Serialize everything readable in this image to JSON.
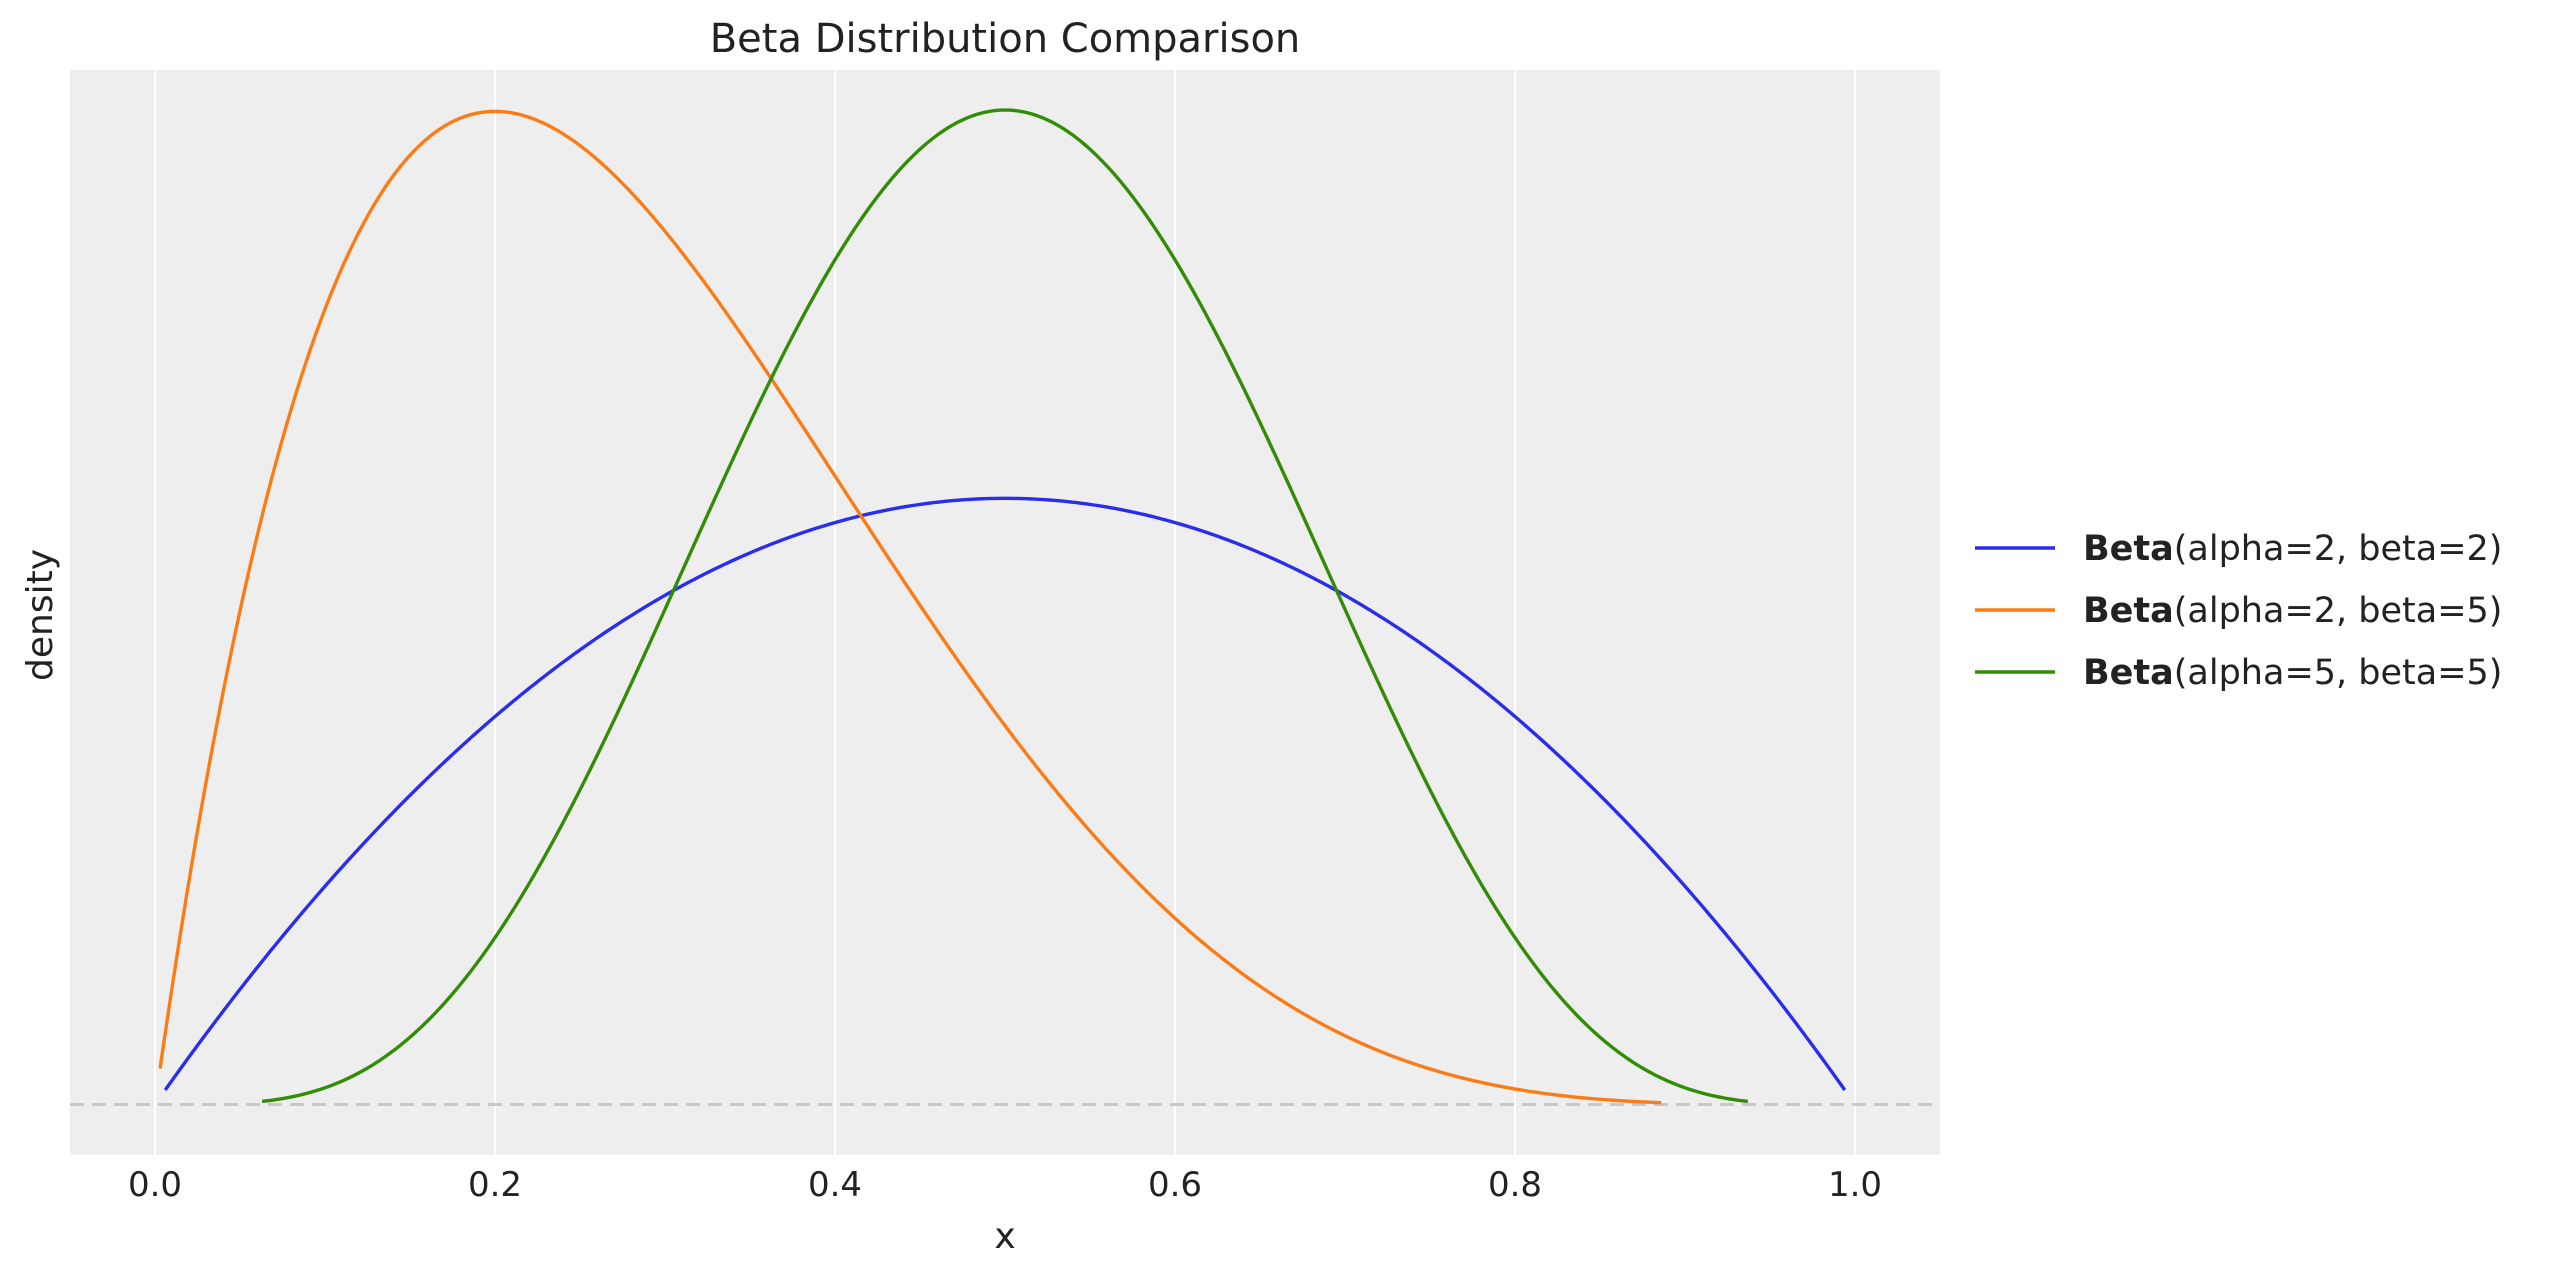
{
  "chart_data": {
    "type": "line",
    "title": "Beta Distribution Comparison",
    "xlabel": "x",
    "ylabel": "density",
    "xlim": [
      -0.05,
      1.05
    ],
    "ylim": [
      -0.125,
      2.56
    ],
    "grid": "vertical",
    "y_ticks_shown": false,
    "x_ticks": [
      0.0,
      0.2,
      0.4,
      0.6,
      0.8,
      1.0
    ],
    "x_tick_labels": [
      "0.0",
      "0.2",
      "0.4",
      "0.6",
      "0.8",
      "1.0"
    ],
    "baseline": {
      "y": 0,
      "style": "dashed",
      "color": "#c8c8c8"
    },
    "legend": {
      "placement": "right"
    },
    "series": [
      {
        "legend_bold": "Beta",
        "legend_rest": "(alpha=2, beta=2)",
        "color": "#2a2eec",
        "alpha": 2,
        "beta": 2,
        "x_range": [
          0.006,
          0.994
        ]
      },
      {
        "legend_bold": "Beta",
        "legend_rest": "(alpha=2, beta=5)",
        "color": "#fa7c17",
        "alpha": 2,
        "beta": 5,
        "x_range": [
          0.003,
          0.886
        ]
      },
      {
        "legend_bold": "Beta",
        "legend_rest": "(alpha=5, beta=5)",
        "color": "#328c06",
        "alpha": 5,
        "beta": 5,
        "x_range": [
          0.063,
          0.937
        ]
      }
    ]
  }
}
